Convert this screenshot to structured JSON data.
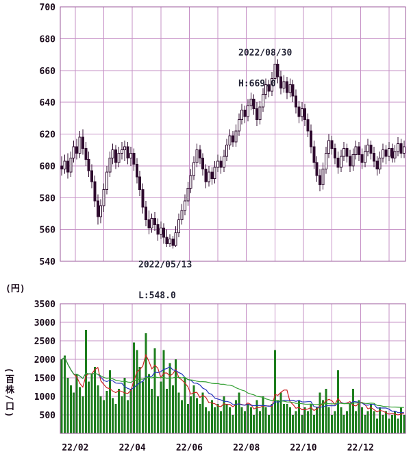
{
  "colors": {
    "background": "#ffffff",
    "grid": "#c690c6",
    "plot_border": "#9b5a9b",
    "candle_down": "#2e0a2e",
    "candle_up_fill": "#ffffff",
    "axis_text": "#1a0a1a",
    "annotation_text": "#242436",
    "volume_bar": "#1e7e1e",
    "volume_ma_short": "#cc2222",
    "volume_ma_mid": "#2233bb",
    "volume_ma_long": "#33a033"
  },
  "chart_data": [
    {
      "type": "candlestick",
      "title": "",
      "ylabel": "(円)",
      "xlabel": "",
      "ylim": [
        540,
        700
      ],
      "yticks": [
        700,
        680,
        660,
        640,
        620,
        600,
        580,
        560,
        540
      ],
      "x_labels": [
        {
          "text": "22/02",
          "index": 5
        },
        {
          "text": "22/04",
          "index": 24
        },
        {
          "text": "22/06",
          "index": 43
        },
        {
          "text": "22/08",
          "index": 62
        },
        {
          "text": "22/10",
          "index": 81
        },
        {
          "text": "22/12",
          "index": 100
        }
      ],
      "x_gridline_indices": [
        5,
        14.5,
        24,
        33.5,
        43,
        52.5,
        62,
        71.5,
        81,
        90.5,
        100,
        109.5
      ],
      "annotations": [
        {
          "name": "high",
          "date": "2022/08/30",
          "value": 669.0,
          "lines": [
            "2022/08/30",
            "H:669.0"
          ]
        },
        {
          "name": "low",
          "date": "2022/05/13",
          "value": 548.0,
          "lines": [
            "2022/05/13",
            "L:548.0"
          ]
        }
      ],
      "ohlc": [
        [
          600,
          606,
          594,
          598
        ],
        [
          598,
          607,
          595,
          603
        ],
        [
          603,
          608,
          592,
          596
        ],
        [
          596,
          609,
          593,
          605
        ],
        [
          605,
          616,
          602,
          612
        ],
        [
          612,
          617,
          604,
          608
        ],
        [
          608,
          622,
          605,
          618
        ],
        [
          618,
          623,
          607,
          611
        ],
        [
          611,
          615,
          600,
          604
        ],
        [
          604,
          609,
          593,
          597
        ],
        [
          597,
          601,
          586,
          590
        ],
        [
          590,
          594,
          574,
          578
        ],
        [
          578,
          582,
          563,
          568
        ],
        [
          568,
          579,
          564,
          575
        ],
        [
          575,
          589,
          571,
          585
        ],
        [
          585,
          600,
          582,
          596
        ],
        [
          596,
          609,
          593,
          605
        ],
        [
          605,
          614,
          601,
          610
        ],
        [
          610,
          613,
          598,
          602
        ],
        [
          602,
          612,
          599,
          608
        ],
        [
          608,
          615,
          604,
          610
        ],
        [
          610,
          616,
          603,
          612
        ],
        [
          612,
          615,
          601,
          605
        ],
        [
          605,
          612,
          600,
          608
        ],
        [
          608,
          611,
          597,
          601
        ],
        [
          601,
          605,
          589,
          593
        ],
        [
          593,
          597,
          581,
          585
        ],
        [
          585,
          589,
          570,
          574
        ],
        [
          574,
          578,
          562,
          566
        ],
        [
          566,
          572,
          557,
          561
        ],
        [
          561,
          570,
          558,
          567
        ],
        [
          567,
          571,
          559,
          563
        ],
        [
          563,
          567,
          553,
          557
        ],
        [
          557,
          565,
          554,
          561
        ],
        [
          561,
          564,
          551,
          555
        ],
        [
          555,
          560,
          549,
          551
        ],
        [
          551,
          557,
          549,
          554
        ],
        [
          554,
          556,
          548,
          550
        ],
        [
          550,
          562,
          549,
          558
        ],
        [
          558,
          570,
          555,
          566
        ],
        [
          566,
          576,
          563,
          572
        ],
        [
          572,
          582,
          569,
          578
        ],
        [
          578,
          590,
          575,
          586
        ],
        [
          586,
          598,
          583,
          594
        ],
        [
          594,
          606,
          591,
          602
        ],
        [
          602,
          614,
          599,
          610
        ],
        [
          610,
          613,
          601,
          605
        ],
        [
          605,
          608,
          594,
          598
        ],
        [
          598,
          601,
          586,
          590
        ],
        [
          590,
          600,
          587,
          596
        ],
        [
          596,
          599,
          588,
          592
        ],
        [
          592,
          603,
          589,
          599
        ],
        [
          599,
          607,
          596,
          603
        ],
        [
          603,
          606,
          595,
          599
        ],
        [
          599,
          610,
          596,
          606
        ],
        [
          606,
          617,
          603,
          613
        ],
        [
          613,
          623,
          610,
          619
        ],
        [
          619,
          622,
          612,
          615
        ],
        [
          615,
          626,
          612,
          622
        ],
        [
          622,
          633,
          619,
          629
        ],
        [
          629,
          639,
          626,
          635
        ],
        [
          635,
          638,
          627,
          631
        ],
        [
          631,
          642,
          628,
          638
        ],
        [
          638,
          646,
          635,
          642
        ],
        [
          642,
          645,
          632,
          636
        ],
        [
          636,
          640,
          625,
          629
        ],
        [
          629,
          641,
          626,
          637
        ],
        [
          637,
          649,
          634,
          645
        ],
        [
          645,
          655,
          642,
          651
        ],
        [
          651,
          654,
          643,
          647
        ],
        [
          647,
          659,
          644,
          655
        ],
        [
          655,
          669,
          652,
          664
        ],
        [
          664,
          667,
          652,
          656
        ],
        [
          656,
          660,
          645,
          649
        ],
        [
          649,
          657,
          646,
          653
        ],
        [
          653,
          656,
          642,
          646
        ],
        [
          646,
          655,
          643,
          651
        ],
        [
          651,
          654,
          640,
          644
        ],
        [
          644,
          648,
          633,
          637
        ],
        [
          637,
          641,
          627,
          631
        ],
        [
          631,
          640,
          628,
          636
        ],
        [
          636,
          639,
          625,
          629
        ],
        [
          629,
          633,
          618,
          622
        ],
        [
          622,
          626,
          608,
          612
        ],
        [
          612,
          616,
          598,
          602
        ],
        [
          602,
          606,
          590,
          594
        ],
        [
          594,
          598,
          584,
          588
        ],
        [
          588,
          602,
          585,
          598
        ],
        [
          598,
          612,
          595,
          608
        ],
        [
          608,
          620,
          605,
          616
        ],
        [
          616,
          619,
          607,
          611
        ],
        [
          611,
          614,
          601,
          605
        ],
        [
          605,
          609,
          595,
          599
        ],
        [
          599,
          610,
          596,
          606
        ],
        [
          606,
          615,
          603,
          611
        ],
        [
          611,
          614,
          602,
          606
        ],
        [
          606,
          610,
          596,
          600
        ],
        [
          600,
          611,
          597,
          607
        ],
        [
          607,
          616,
          604,
          612
        ],
        [
          612,
          615,
          603,
          607
        ],
        [
          607,
          611,
          598,
          602
        ],
        [
          602,
          613,
          599,
          609
        ],
        [
          609,
          617,
          606,
          613
        ],
        [
          613,
          616,
          604,
          608
        ],
        [
          608,
          612,
          599,
          603
        ],
        [
          603,
          606,
          594,
          598
        ],
        [
          598,
          609,
          595,
          605
        ],
        [
          605,
          614,
          602,
          610
        ],
        [
          610,
          613,
          601,
          606
        ],
        [
          606,
          615,
          603,
          611
        ],
        [
          611,
          614,
          602,
          605
        ],
        [
          605,
          613,
          602,
          609
        ],
        [
          609,
          618,
          606,
          614
        ],
        [
          614,
          617,
          605,
          608
        ],
        [
          608,
          616,
          605,
          612
        ]
      ]
    },
    {
      "type": "bar",
      "title": "",
      "ylabel": "(百株/口)",
      "xlabel": "",
      "ylim": [
        0,
        3500
      ],
      "yticks": [
        3500,
        3000,
        2500,
        2000,
        1500,
        1000,
        500
      ],
      "values": [
        2000,
        2100,
        1500,
        1300,
        1100,
        1600,
        1250,
        1000,
        2800,
        1400,
        1600,
        1800,
        1300,
        1000,
        900,
        1150,
        1700,
        950,
        800,
        1200,
        1000,
        1500,
        900,
        1200,
        2450,
        2250,
        1800,
        1400,
        2700,
        1600,
        1200,
        2300,
        1000,
        1400,
        2250,
        1200,
        1900,
        1300,
        2000,
        1100,
        900,
        1500,
        800,
        1000,
        1300,
        950,
        800,
        1100,
        700,
        600,
        900,
        700,
        800,
        600,
        1000,
        800,
        700,
        500,
        900,
        1100,
        700,
        600,
        800,
        700,
        500,
        900,
        600,
        1000,
        700,
        500,
        800,
        2250,
        900,
        1100,
        800,
        800,
        700,
        500,
        600,
        900,
        500,
        700,
        600,
        800,
        500,
        700,
        1100,
        900,
        1200,
        700,
        500,
        600,
        1700,
        700,
        500,
        600,
        800,
        1200,
        600,
        900,
        700,
        500,
        600,
        800,
        600,
        400,
        700,
        500,
        600,
        400,
        500,
        600,
        400,
        700,
        500
      ],
      "ma_windows": [
        5,
        13,
        34
      ]
    }
  ]
}
